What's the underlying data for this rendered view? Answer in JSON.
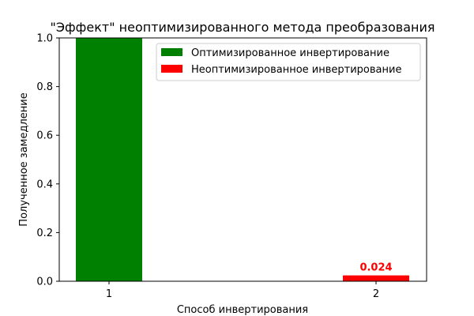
{
  "chart_data": {
    "type": "bar",
    "title": "\"Эффект\" неоптимизированного метода преобразования",
    "xlabel": "Способ инвертирования",
    "ylabel": "Полученное замедление",
    "categories": [
      "1",
      "2"
    ],
    "ylim": [
      0,
      1.0
    ],
    "yticks": [
      "0.0",
      "0.2",
      "0.4",
      "0.6",
      "0.8",
      "1.0"
    ],
    "grid": false,
    "legend_position": "top-right",
    "series": [
      {
        "name": "Оптимизированное инвертирование",
        "category": "1",
        "value": 1.0,
        "color": "#008000",
        "label": ""
      },
      {
        "name": "Неоптимизированное инвертирование",
        "category": "2",
        "value": 0.024,
        "color": "#ff0000",
        "label": "0.024"
      }
    ]
  }
}
